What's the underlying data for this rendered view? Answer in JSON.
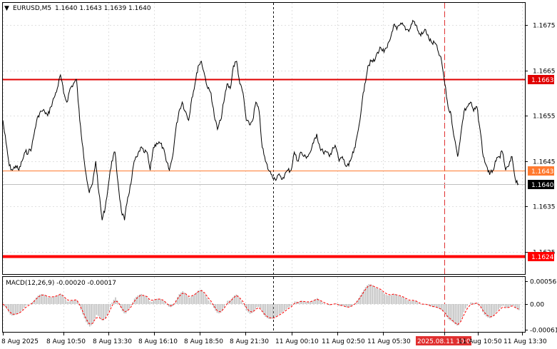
{
  "header": {
    "menu_glyph": "▼",
    "symbol": "EURUSD,M5",
    "ohlc": "1.1640 1.1643 1.1639 1.1640"
  },
  "macd": {
    "label": "MACD(12,26,9) -0.00020 -0.00017",
    "ticks": [
      "0.00056",
      "0.00",
      "-0.00061"
    ]
  },
  "colors": {
    "background": "#ffffff",
    "price_line": "#000000",
    "resistance_line": "#e00000",
    "support_line": "#ff0000",
    "mid_line": "#ff7a30",
    "current_line": "#c0c0c0",
    "histogram": "#c0c0c0",
    "signal_line": "#ff0000",
    "vline_red": "#e03030",
    "vline_black": "#000000"
  },
  "chart_data": {
    "type": "line",
    "title": "EURUSD,M5",
    "ylim": [
      1.1624,
      1.1681
    ],
    "y_ticks": [
      "1.1675",
      "1.1665",
      "1.1655",
      "1.1645",
      "1.1635",
      "1.1625"
    ],
    "x_tick_labels": [
      "8 Aug 2025",
      "8 Aug 10:50",
      "8 Aug 13:30",
      "8 Aug 16:10",
      "8 Aug 18:50",
      "8 Aug 21:30",
      "11 Aug 00:10",
      "11 Aug 02:50",
      "11 Aug 05:30",
      "2025.08.11 10:00",
      "11 Aug 10:50",
      "11 Aug 13:30"
    ],
    "highlighted_time": "2025.08.11 10:00",
    "horizontal_levels": [
      {
        "value": 1.1663,
        "label": "1.1663",
        "kind": "resistance"
      },
      {
        "value": 1.1643,
        "label": "1.1643",
        "kind": "mid"
      },
      {
        "value": 1.164,
        "label": "1.1640",
        "kind": "current"
      },
      {
        "value": 1.1624,
        "label": "1.1624",
        "kind": "support"
      }
    ],
    "series": [
      {
        "values": [
          1.1654,
          1.1649,
          1.1644,
          1.1643,
          1.1644,
          1.1643,
          1.1645,
          1.1647,
          1.1647,
          1.1648,
          1.1652,
          1.1655,
          1.1656,
          1.1656,
          1.1655,
          1.1657,
          1.1659,
          1.1661,
          1.1664,
          1.166,
          1.1658,
          1.1661,
          1.1662,
          1.1663,
          1.1654,
          1.1648,
          1.1642,
          1.1638,
          1.164,
          1.1645,
          1.1638,
          1.1632,
          1.1635,
          1.164,
          1.1645,
          1.1647,
          1.164,
          1.1634,
          1.1632,
          1.1637,
          1.164,
          1.1645,
          1.1646,
          1.1648,
          1.1647,
          1.1647,
          1.1643,
          1.1648,
          1.1649,
          1.1649,
          1.1648,
          1.1645,
          1.1643,
          1.1646,
          1.1652,
          1.1656,
          1.1658,
          1.1656,
          1.1654,
          1.1659,
          1.1662,
          1.1666,
          1.1667,
          1.1664,
          1.1661,
          1.166,
          1.1655,
          1.1652,
          1.1654,
          1.1658,
          1.1662,
          1.1661,
          1.1666,
          1.1667,
          1.1662,
          1.166,
          1.1654,
          1.1653,
          1.1654,
          1.1658,
          1.1656,
          1.1648,
          1.1645,
          1.1643,
          1.1642,
          1.1641,
          1.1642,
          1.1641,
          1.1642,
          1.1643,
          1.1643,
          1.1647,
          1.1645,
          1.1647,
          1.1646,
          1.1646,
          1.1647,
          1.1649,
          1.1651,
          1.1648,
          1.1647,
          1.1647,
          1.1646,
          1.1648,
          1.1648,
          1.1645,
          1.1646,
          1.1644,
          1.1644,
          1.1646,
          1.1648,
          1.1652,
          1.1657,
          1.1662,
          1.1666,
          1.1667,
          1.1667,
          1.1669,
          1.167,
          1.1669,
          1.167,
          1.1672,
          1.1675,
          1.1674,
          1.1675,
          1.1675,
          1.1674,
          1.1674,
          1.1676,
          1.1675,
          1.1673,
          1.1673,
          1.1674,
          1.1672,
          1.1671,
          1.1671,
          1.1669,
          1.1667,
          1.1662,
          1.1657,
          1.1655,
          1.165,
          1.1646,
          1.1651,
          1.1656,
          1.1657,
          1.1658,
          1.1656,
          1.1657,
          1.1652,
          1.1646,
          1.1644,
          1.1642,
          1.1643,
          1.1645,
          1.1646,
          1.1647,
          1.1643,
          1.1644,
          1.1646,
          1.1641,
          1.164
        ]
      }
    ]
  }
}
